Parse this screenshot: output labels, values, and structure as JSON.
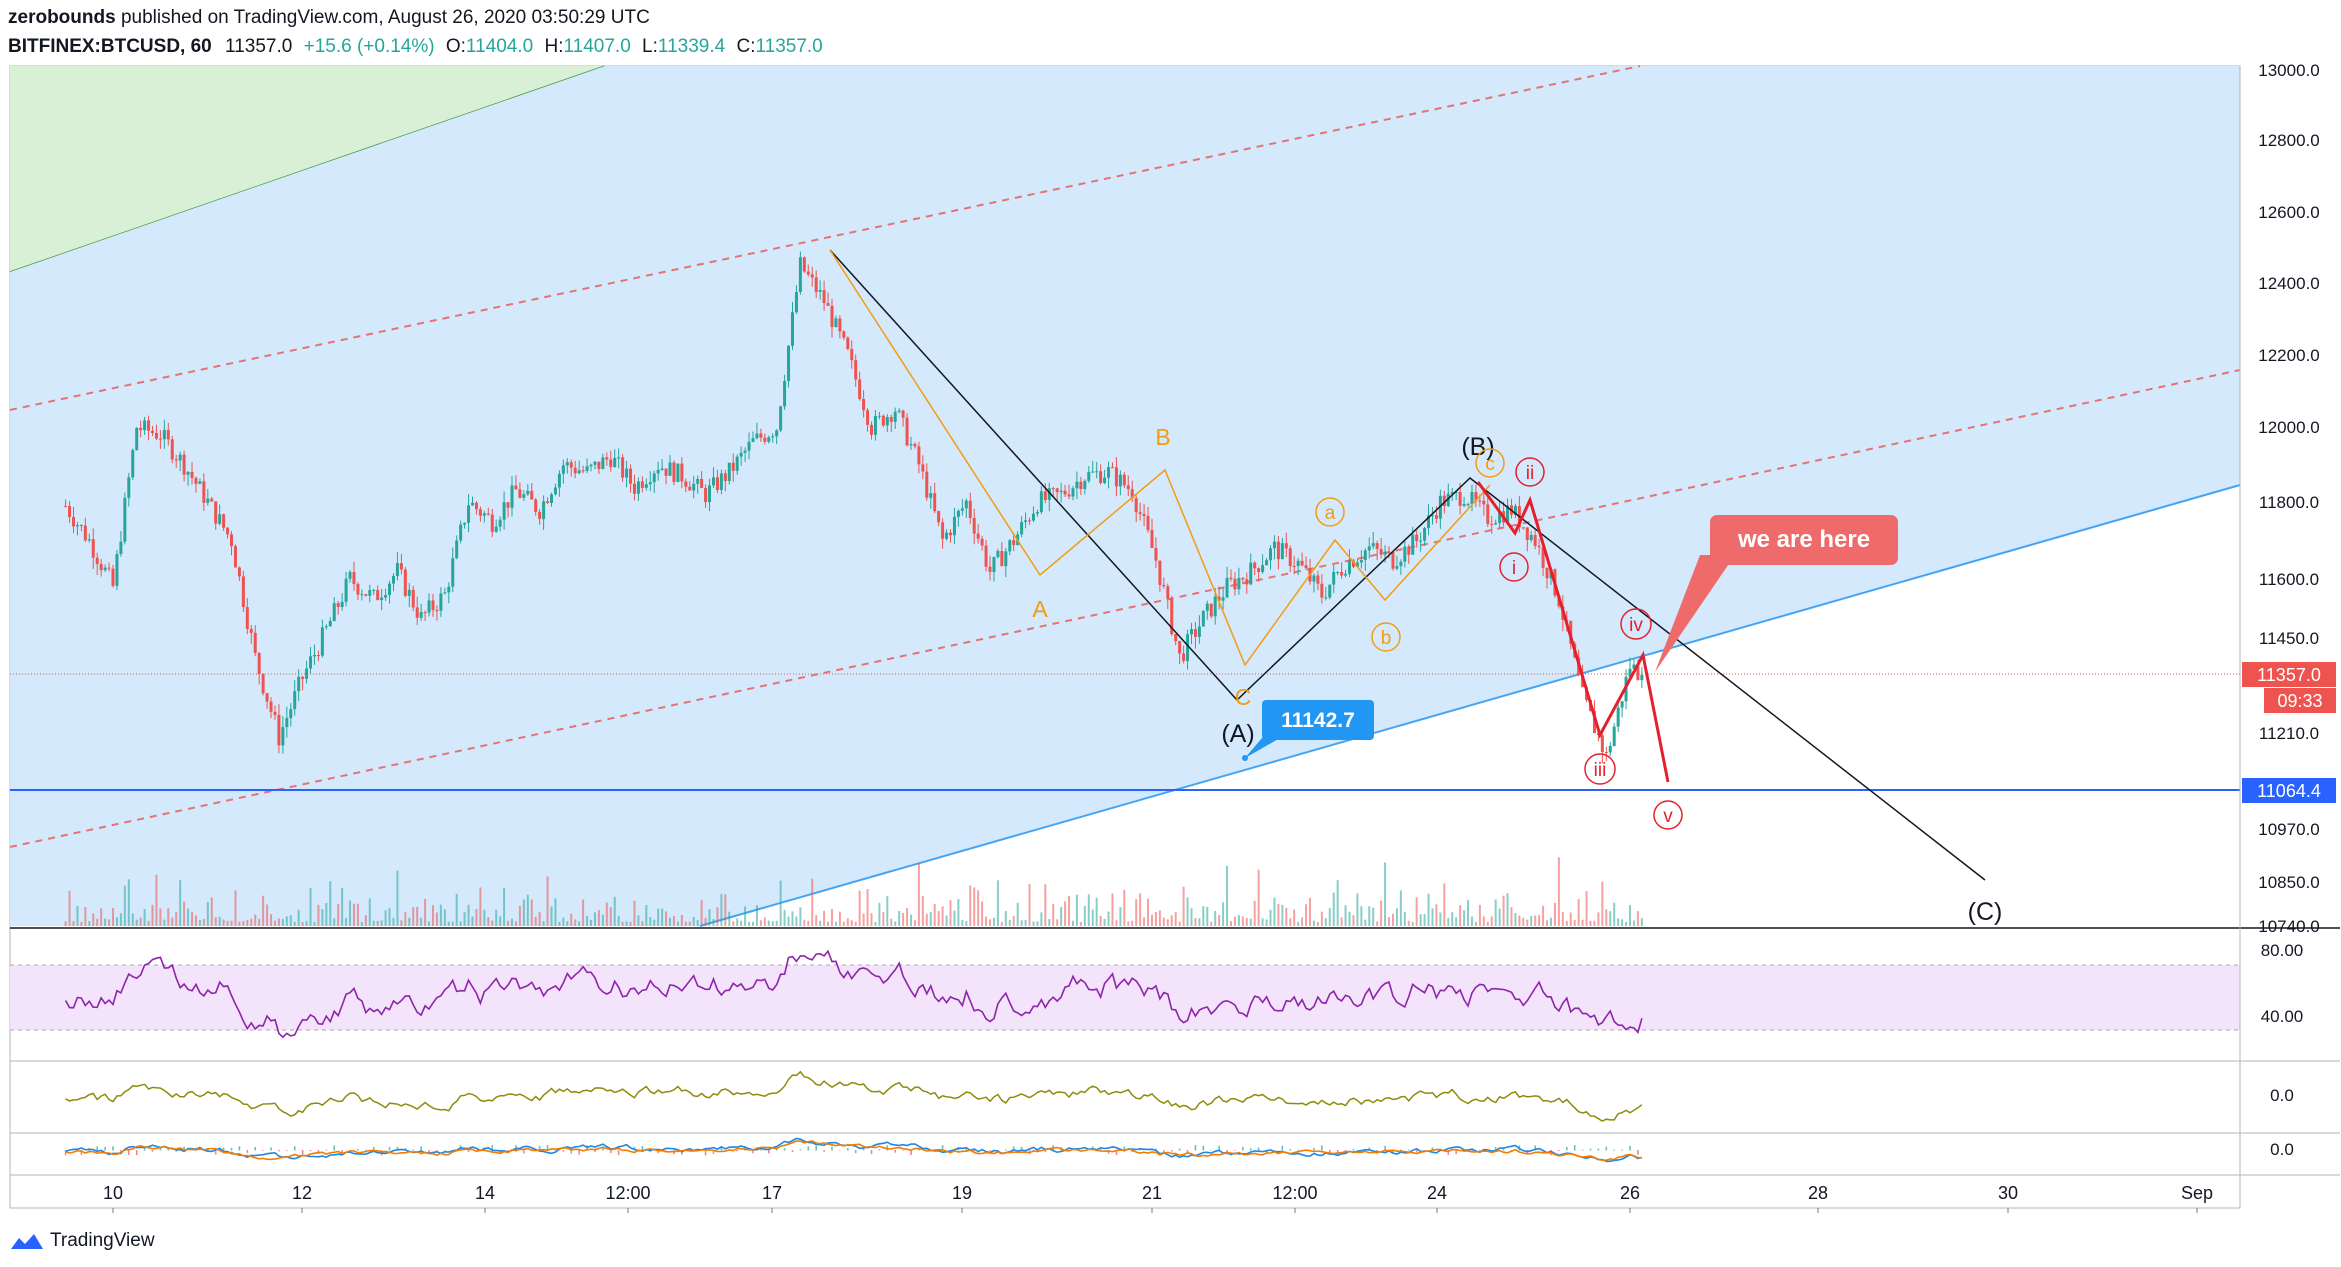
{
  "header": {
    "author": "zerobounds",
    "published_text": "published on TradingView.com, August 26, 2020 03:50:29 UTC",
    "symbol": "BITFINEX:BTCUSD, 60",
    "last": "11357.0",
    "change": "+15.6 (+0.14%)",
    "o_label": "O:",
    "o_value": "11404.0",
    "h_label": "H:",
    "h_value": "11407.0",
    "l_label": "L:",
    "l_value": "11339.4",
    "c_label": "C:",
    "c_value": "11357.0"
  },
  "footer": {
    "brand": "TradingView"
  },
  "colors": {
    "up": "#26a69a",
    "down": "#ef5350",
    "channel_fill": "#d4e9fb",
    "upper_fill": "#d9efd6",
    "wave_red": "#e5202c",
    "wave_orange": "#f39c12",
    "rsi_line": "#8e24aa",
    "rsi_band": "#f3e3fb",
    "osc_line": "#8c8c0a",
    "macd_line": "#1e88e5",
    "signal_line": "#f57c00",
    "support_line": "#2962ff"
  },
  "chart_data": {
    "type": "candlestick",
    "symbol": "BITFINEX:BTCUSD",
    "timeframe": "60",
    "y_axis": {
      "ticks": [
        "13000.0",
        "12800.0",
        "12600.0",
        "12400.0",
        "12200.0",
        "12000.0",
        "11800.0",
        "11600.0",
        "11450.0",
        "11210.0",
        "10970.0",
        "10850.0",
        "10740.0"
      ],
      "tick_values": [
        13000,
        12800,
        12600,
        12400,
        12200,
        12000,
        11800,
        11600,
        11450,
        11210,
        10970,
        10850,
        10740
      ]
    },
    "x_axis": {
      "ticks": [
        "10",
        "12",
        "14",
        "12:00",
        "17",
        "19",
        "21",
        "12:00",
        "24",
        "26",
        "28",
        "30",
        "Sep"
      ]
    },
    "price_series": [
      [
        "Aug 9 12:00",
        11790
      ],
      [
        "Aug 9 18:00",
        11700
      ],
      [
        "Aug 10 00:00",
        11580
      ],
      [
        "Aug 10 06:00",
        12000
      ],
      [
        "Aug 10 12:00",
        11980
      ],
      [
        "Aug 10 18:00",
        11900
      ],
      [
        "Aug 11 00:00",
        11800
      ],
      [
        "Aug 11 06:00",
        11700
      ],
      [
        "Aug 11 12:00",
        11400
      ],
      [
        "Aug 11 18:00",
        11200
      ],
      [
        "Aug 12 00:00",
        11350
      ],
      [
        "Aug 12 06:00",
        11470
      ],
      [
        "Aug 12 12:00",
        11600
      ],
      [
        "Aug 12 18:00",
        11550
      ],
      [
        "Aug 13 00:00",
        11620
      ],
      [
        "Aug 13 06:00",
        11500
      ],
      [
        "Aug 13 12:00",
        11560
      ],
      [
        "Aug 13 18:00",
        11800
      ],
      [
        "Aug 14 00:00",
        11750
      ],
      [
        "Aug 14 06:00",
        11830
      ],
      [
        "Aug 14 12:00",
        11780
      ],
      [
        "Aug 14 18:00",
        11900
      ],
      [
        "Aug 15 00:00",
        11880
      ],
      [
        "Aug 15 06:00",
        11920
      ],
      [
        "Aug 15 12:00",
        11840
      ],
      [
        "Aug 15 18:00",
        11900
      ],
      [
        "Aug 16 00:00",
        11870
      ],
      [
        "Aug 16 06:00",
        11820
      ],
      [
        "Aug 16 12:00",
        11880
      ],
      [
        "Aug 16 18:00",
        11960
      ],
      [
        "Aug 17 00:00",
        12000
      ],
      [
        "Aug 17 06:00",
        12450
      ],
      [
        "Aug 17 12:00",
        12350
      ],
      [
        "Aug 17 18:00",
        12200
      ],
      [
        "Aug 18 00:00",
        12000
      ],
      [
        "Aug 18 06:00",
        12050
      ],
      [
        "Aug 18 12:00",
        11900
      ],
      [
        "Aug 18 18:00",
        11700
      ],
      [
        "Aug 19 00:00",
        11800
      ],
      [
        "Aug 19 06:00",
        11620
      ],
      [
        "Aug 19 12:00",
        11700
      ],
      [
        "Aug 19 18:00",
        11800
      ],
      [
        "Aug 20 00:00",
        11820
      ],
      [
        "Aug 20 06:00",
        11870
      ],
      [
        "Aug 20 12:00",
        11880
      ],
      [
        "Aug 20 18:00",
        11830
      ],
      [
        "Aug 21 00:00",
        11650
      ],
      [
        "Aug 21 06:00",
        11400
      ],
      [
        "Aug 21 12:00",
        11500
      ],
      [
        "Aug 21 18:00",
        11580
      ],
      [
        "Aug 22 00:00",
        11620
      ],
      [
        "Aug 22 06:00",
        11680
      ],
      [
        "Aug 22 12:00",
        11640
      ],
      [
        "Aug 22 18:00",
        11560
      ],
      [
        "Aug 23 00:00",
        11640
      ],
      [
        "Aug 23 06:00",
        11680
      ],
      [
        "Aug 23 12:00",
        11650
      ],
      [
        "Aug 23 18:00",
        11700
      ],
      [
        "Aug 24 00:00",
        11800
      ],
      [
        "Aug 24 06:00",
        11820
      ],
      [
        "Aug 24 12:00",
        11760
      ],
      [
        "Aug 24 18:00",
        11780
      ],
      [
        "Aug 25 00:00",
        11700
      ],
      [
        "Aug 25 06:00",
        11550
      ],
      [
        "Aug 25 12:00",
        11300
      ],
      [
        "Aug 25 18:00",
        11150
      ],
      [
        "Aug 26 00:00",
        11380
      ],
      [
        "Aug 26 03:00",
        11357
      ]
    ],
    "levels": {
      "last_price": 11357.0,
      "support": 11064.4
    },
    "price_labels": [
      "11357.0",
      "09:33",
      "11064.4",
      "11142.7"
    ],
    "wave_labels": {
      "primary": [
        "(A)",
        "(B)",
        "(C)"
      ],
      "corrective": [
        "A",
        "B",
        "C"
      ],
      "minor": [
        "a",
        "b",
        "c"
      ],
      "impulse": [
        "i",
        "ii",
        "iii",
        "iv",
        "v"
      ]
    },
    "callout": "we are here",
    "indicators": {
      "rsi_ticks": [
        "80.00",
        "40.00"
      ],
      "oscillator_ticks": [
        "0.0"
      ],
      "macd_ticks": [
        "0.0"
      ]
    },
    "legend": "none",
    "grid": false
  }
}
